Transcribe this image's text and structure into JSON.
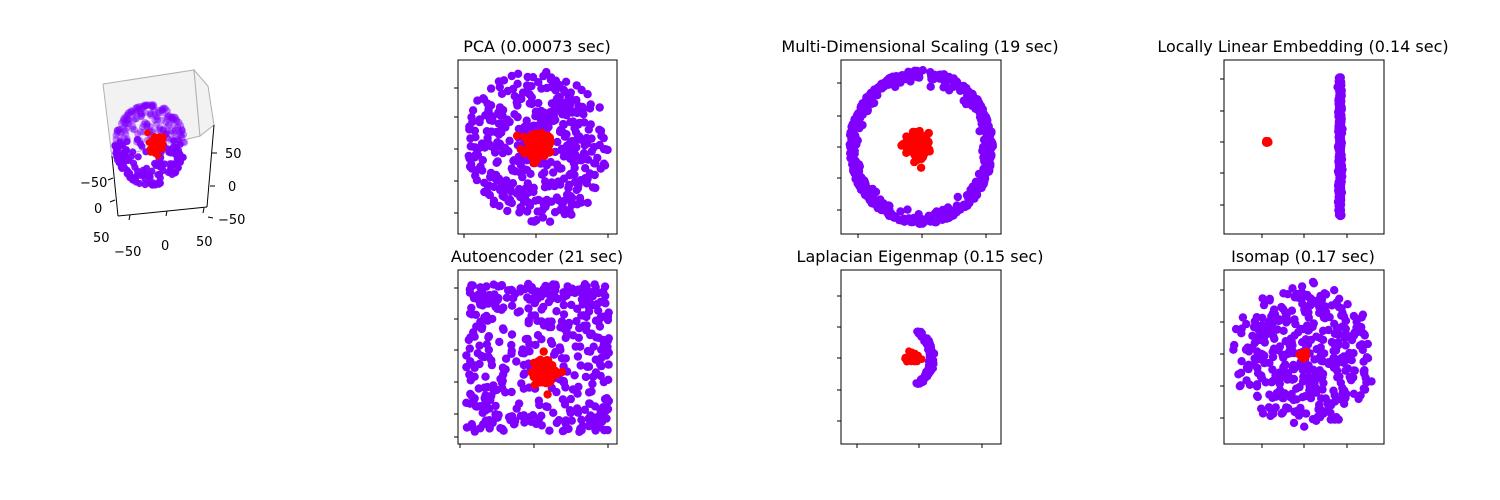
{
  "figure": {
    "colors": {
      "outer": "#8000ff",
      "inner": "#ff0000"
    }
  },
  "chart_data": [
    {
      "type": "scatter",
      "projection": "3d",
      "title": "",
      "series": [
        {
          "color": "#8000ff",
          "shape": "hollow sphere",
          "radius": 50
        },
        {
          "color": "#ff0000",
          "shape": "small sphere at center",
          "radius": 8
        }
      ],
      "axes": {
        "x": {
          "ticks": [
            "−50",
            "0",
            "50"
          ],
          "range": [
            -60,
            60
          ]
        },
        "y": {
          "ticks": [
            "−50",
            "0",
            "50"
          ],
          "range": [
            -60,
            60
          ]
        },
        "z": {
          "ticks": [
            "−50",
            "0",
            "50"
          ],
          "range": [
            -60,
            60
          ]
        }
      }
    },
    {
      "type": "scatter",
      "title": "PCA (0.00073 sec)",
      "xlim": [
        -55,
        55
      ],
      "ylim": [
        -55,
        55
      ],
      "tick_labels_visible": false,
      "series": [
        {
          "color": "#8000ff",
          "shape": "filled disk",
          "radius": 50
        },
        {
          "color": "#ff0000",
          "shape": "compact blob at center",
          "radius": 8
        }
      ]
    },
    {
      "type": "scatter",
      "title": "Multi-Dimensional Scaling (19 sec)",
      "xlim": [
        -55,
        55
      ],
      "ylim": [
        -55,
        55
      ],
      "tick_labels_visible": false,
      "series": [
        {
          "color": "#8000ff",
          "shape": "ring",
          "radius": 50
        },
        {
          "color": "#ff0000",
          "shape": "compact blob at center",
          "radius": 8
        }
      ]
    },
    {
      "type": "scatter",
      "title": "Locally Linear Embedding (0.14 sec)",
      "tick_labels_visible": false,
      "series": [
        {
          "color": "#8000ff",
          "shape": "vertical line",
          "x": 0.055
        },
        {
          "color": "#ff0000",
          "shape": "single tight cluster",
          "x": -0.055,
          "y": 0.0
        }
      ]
    },
    {
      "type": "scatter",
      "title": "Autoencoder (21 sec)",
      "xlim": [
        -1,
        1
      ],
      "ylim": [
        -1,
        1
      ],
      "tick_labels_visible": false,
      "series": [
        {
          "color": "#8000ff",
          "shape": "filled square"
        },
        {
          "color": "#ff0000",
          "shape": "blob right of center below middle"
        }
      ]
    },
    {
      "type": "scatter",
      "title": "Laplacian Eigenmap (0.15 sec)",
      "tick_labels_visible": false,
      "series": [
        {
          "color": "#8000ff",
          "shape": "thin crescent"
        },
        {
          "color": "#ff0000",
          "shape": "small flat cluster"
        }
      ]
    },
    {
      "type": "scatter",
      "title": "Isomap (0.17 sec)",
      "xlim": [
        -55,
        55
      ],
      "ylim": [
        -55,
        55
      ],
      "tick_labels_visible": false,
      "series": [
        {
          "color": "#8000ff",
          "shape": "filled disk",
          "radius": 50
        },
        {
          "color": "#ff0000",
          "shape": "tiny cluster near center",
          "radius": 4
        }
      ]
    }
  ]
}
